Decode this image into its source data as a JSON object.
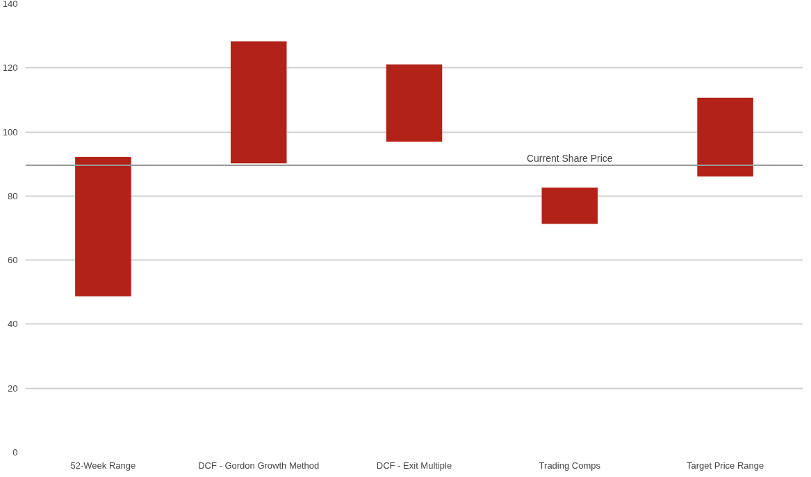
{
  "chart_data": {
    "type": "bar",
    "categories": [
      "52-Week Range",
      "DCF - Gordon Growth Method",
      "DCF - Exit Multiple",
      "Trading Comps",
      "Target Price Range"
    ],
    "base": [
      48.7,
      90.2,
      97.0,
      71.3,
      86.1
    ],
    "values": [
      43.5,
      38.1,
      24.1,
      11.3,
      24.6
    ],
    "color": "#b22218",
    "ylim": [
      0,
      140
    ],
    "yticks": [
      0,
      20,
      40,
      60,
      80,
      100,
      120,
      140
    ],
    "grid": "y",
    "ref_lines": [
      {
        "axis": "y",
        "value": 89.6,
        "label": "Current Share Price",
        "color": "#999999"
      }
    ]
  }
}
